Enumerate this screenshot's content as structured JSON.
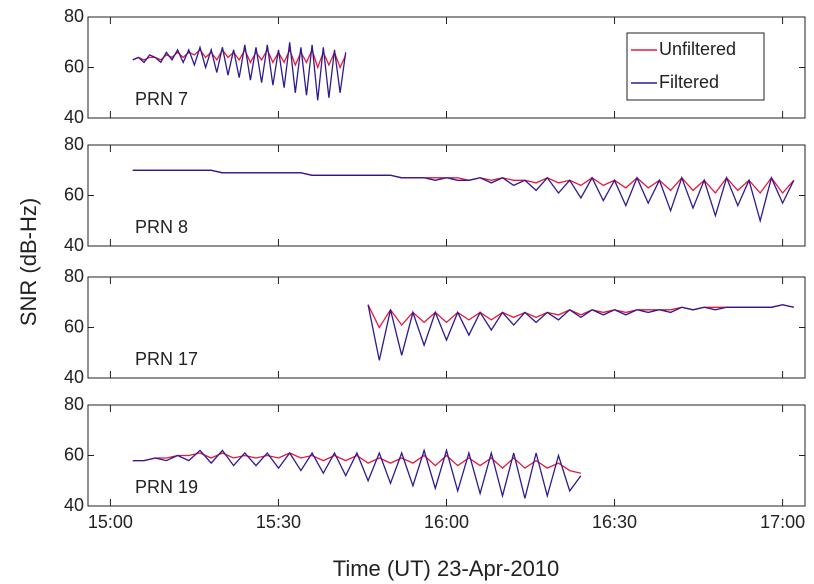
{
  "figure": {
    "xlabel": "Time (UT) 23-Apr-2010",
    "ylabel": "SNR (dB-Hz)"
  },
  "chart_data": [
    {
      "type": "line",
      "title": "PRN 7",
      "legend": "upper right",
      "xlim": [
        "14:56",
        "17:04"
      ],
      "xticks": [
        "15:00",
        "15:30",
        "16:00",
        "16:30",
        "17:00"
      ],
      "ylim": [
        40,
        80
      ],
      "yticks": [
        40,
        60,
        80
      ],
      "x": [
        "15:04",
        "15:05",
        "15:06",
        "15:07",
        "15:08",
        "15:09",
        "15:10",
        "15:11",
        "15:12",
        "15:13",
        "15:14",
        "15:15",
        "15:16",
        "15:17",
        "15:18",
        "15:19",
        "15:20",
        "15:21",
        "15:22",
        "15:23",
        "15:24",
        "15:25",
        "15:26",
        "15:27",
        "15:28",
        "15:29",
        "15:30",
        "15:31",
        "15:32",
        "15:33",
        "15:34",
        "15:35",
        "15:36",
        "15:37",
        "15:38",
        "15:39",
        "15:40",
        "15:41",
        "15:42"
      ],
      "series": [
        {
          "name": "Unfiltered",
          "color": "#e8193c",
          "values": [
            63,
            64,
            63,
            64,
            64,
            63,
            65,
            64,
            66,
            64,
            66,
            65,
            67,
            64,
            66,
            63,
            67,
            64,
            66,
            63,
            67,
            62,
            66,
            63,
            67,
            62,
            66,
            62,
            67,
            61,
            66,
            62,
            67,
            60,
            66,
            61,
            66,
            60,
            65
          ]
        },
        {
          "name": "Filtered",
          "color": "#2e1a8e",
          "values": [
            63,
            64,
            62,
            65,
            64,
            62,
            66,
            63,
            67,
            62,
            67,
            61,
            68,
            60,
            67,
            58,
            68,
            57,
            67,
            56,
            69,
            55,
            68,
            54,
            69,
            53,
            67,
            52,
            70,
            50,
            68,
            49,
            69,
            47,
            68,
            48,
            67,
            50,
            66
          ]
        }
      ]
    },
    {
      "type": "line",
      "title": "PRN 8",
      "xlim": [
        "14:56",
        "17:04"
      ],
      "xticks": [
        "15:00",
        "15:30",
        "16:00",
        "16:30",
        "17:00"
      ],
      "ylim": [
        40,
        80
      ],
      "yticks": [
        40,
        60,
        80
      ],
      "x": [
        "15:04",
        "15:06",
        "15:08",
        "15:10",
        "15:12",
        "15:14",
        "15:16",
        "15:18",
        "15:20",
        "15:22",
        "15:24",
        "15:26",
        "15:28",
        "15:30",
        "15:32",
        "15:34",
        "15:36",
        "15:38",
        "15:40",
        "15:42",
        "15:44",
        "15:46",
        "15:48",
        "15:50",
        "15:52",
        "15:54",
        "15:56",
        "15:58",
        "16:00",
        "16:02",
        "16:04",
        "16:06",
        "16:08",
        "16:10",
        "16:12",
        "16:14",
        "16:16",
        "16:18",
        "16:20",
        "16:22",
        "16:24",
        "16:26",
        "16:28",
        "16:30",
        "16:32",
        "16:34",
        "16:36",
        "16:38",
        "16:40",
        "16:42",
        "16:44",
        "16:46",
        "16:48",
        "16:50",
        "16:52",
        "16:54",
        "16:56",
        "16:58",
        "17:00",
        "17:02"
      ],
      "series": [
        {
          "color": "#e8193c",
          "values": [
            70,
            70,
            70,
            70,
            70,
            70,
            70,
            70,
            69,
            69,
            69,
            69,
            69,
            69,
            69,
            69,
            68,
            68,
            68,
            68,
            68,
            68,
            68,
            68,
            67,
            67,
            67,
            67,
            67,
            67,
            66,
            67,
            66,
            67,
            66,
            66,
            65,
            67,
            65,
            66,
            64,
            67,
            64,
            66,
            63,
            67,
            63,
            66,
            62,
            67,
            62,
            66,
            61,
            67,
            62,
            66,
            61,
            67,
            61,
            66
          ]
        },
        {
          "color": "#2e1a8e",
          "values": [
            70,
            70,
            70,
            70,
            70,
            70,
            70,
            70,
            69,
            69,
            69,
            69,
            69,
            69,
            69,
            69,
            68,
            68,
            68,
            68,
            68,
            68,
            68,
            68,
            67,
            67,
            67,
            66,
            67,
            66,
            66,
            67,
            65,
            67,
            64,
            66,
            62,
            67,
            61,
            66,
            59,
            67,
            58,
            66,
            56,
            67,
            57,
            66,
            54,
            67,
            55,
            66,
            52,
            67,
            56,
            66,
            50,
            67,
            57,
            66
          ]
        }
      ]
    },
    {
      "type": "line",
      "title": "PRN 17",
      "xlim": [
        "14:56",
        "17:04"
      ],
      "xticks": [
        "15:00",
        "15:30",
        "16:00",
        "16:30",
        "17:00"
      ],
      "ylim": [
        40,
        80
      ],
      "yticks": [
        40,
        60,
        80
      ],
      "x": [
        "15:46",
        "15:48",
        "15:50",
        "15:52",
        "15:54",
        "15:56",
        "15:58",
        "16:00",
        "16:02",
        "16:04",
        "16:06",
        "16:08",
        "16:10",
        "16:12",
        "16:14",
        "16:16",
        "16:18",
        "16:20",
        "16:22",
        "16:24",
        "16:26",
        "16:28",
        "16:30",
        "16:32",
        "16:34",
        "16:36",
        "16:38",
        "16:40",
        "16:42",
        "16:44",
        "16:46",
        "16:48",
        "16:50",
        "16:52",
        "16:54",
        "16:56",
        "16:58",
        "17:00",
        "17:02"
      ],
      "series": [
        {
          "color": "#e8193c",
          "values": [
            69,
            60,
            67,
            61,
            66,
            62,
            66,
            62,
            66,
            63,
            66,
            63,
            66,
            64,
            66,
            64,
            66,
            65,
            67,
            65,
            67,
            66,
            67,
            66,
            67,
            67,
            67,
            67,
            68,
            67,
            68,
            68,
            68,
            68,
            68,
            68,
            68,
            69,
            68
          ]
        },
        {
          "color": "#2e1a8e",
          "values": [
            69,
            47,
            67,
            49,
            66,
            53,
            66,
            55,
            66,
            57,
            66,
            59,
            66,
            61,
            66,
            62,
            66,
            63,
            67,
            64,
            67,
            65,
            67,
            65,
            67,
            66,
            67,
            66,
            68,
            67,
            68,
            67,
            68,
            68,
            68,
            68,
            68,
            69,
            68
          ]
        }
      ]
    },
    {
      "type": "line",
      "title": "PRN 19",
      "xlim": [
        "14:56",
        "17:04"
      ],
      "xticks": [
        "15:00",
        "15:30",
        "16:00",
        "16:30",
        "17:00"
      ],
      "ylim": [
        40,
        80
      ],
      "yticks": [
        40,
        60,
        80
      ],
      "x": [
        "15:04",
        "15:06",
        "15:08",
        "15:10",
        "15:12",
        "15:14",
        "15:16",
        "15:18",
        "15:20",
        "15:22",
        "15:24",
        "15:26",
        "15:28",
        "15:30",
        "15:32",
        "15:34",
        "15:36",
        "15:38",
        "15:40",
        "15:42",
        "15:44",
        "15:46",
        "15:48",
        "15:50",
        "15:52",
        "15:54",
        "15:56",
        "15:58",
        "16:00",
        "16:02",
        "16:04",
        "16:06",
        "16:08",
        "16:10",
        "16:12",
        "16:14",
        "16:16",
        "16:18",
        "16:20",
        "16:22",
        "16:24"
      ],
      "series": [
        {
          "color": "#e8193c",
          "values": [
            58,
            58,
            59,
            59,
            60,
            60,
            61,
            59,
            61,
            59,
            60,
            59,
            60,
            59,
            61,
            59,
            60,
            58,
            60,
            58,
            60,
            57,
            59,
            57,
            59,
            57,
            60,
            56,
            60,
            56,
            59,
            56,
            59,
            55,
            59,
            55,
            58,
            55,
            57,
            54,
            53
          ]
        },
        {
          "color": "#2e1a8e",
          "values": [
            58,
            58,
            59,
            58,
            60,
            58,
            62,
            57,
            62,
            56,
            61,
            56,
            61,
            55,
            61,
            54,
            61,
            53,
            61,
            52,
            61,
            50,
            61,
            49,
            61,
            48,
            62,
            47,
            62,
            46,
            61,
            45,
            61,
            44,
            61,
            43,
            61,
            44,
            60,
            46,
            52
          ]
        }
      ]
    }
  ]
}
